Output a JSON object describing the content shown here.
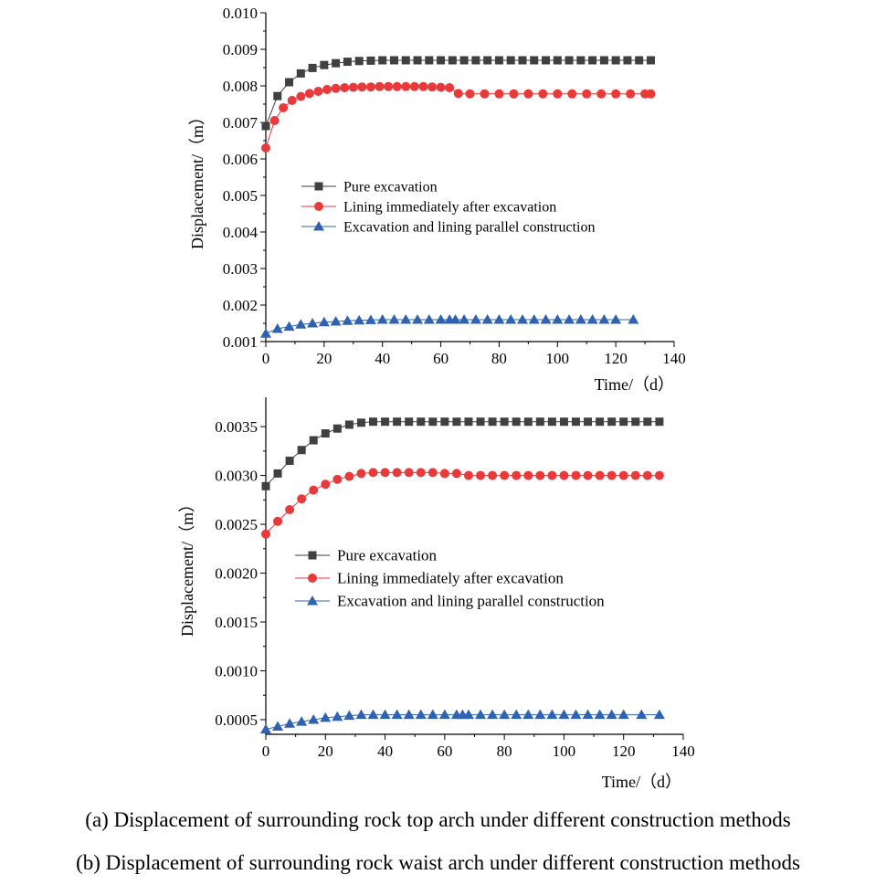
{
  "chart_data": [
    {
      "type": "line",
      "id": "a",
      "xlabel": "Time/（d）",
      "ylabel": "Displacement/（m）",
      "xlim": [
        0,
        140
      ],
      "ylim": [
        0.001,
        0.01
      ],
      "xticks": [
        "0",
        "20",
        "40",
        "60",
        "80",
        "100",
        "120",
        "140"
      ],
      "yticks": [
        "0.001",
        "0.002",
        "0.003",
        "0.004",
        "0.005",
        "0.006",
        "0.007",
        "0.008",
        "0.009",
        "0.010"
      ],
      "legend_position": "center",
      "series": [
        {
          "name": "Pure excavation",
          "color": "#404040",
          "marker": "square",
          "x": [
            0,
            4,
            8,
            12,
            16,
            20,
            24,
            28,
            32,
            36,
            40,
            44,
            48,
            52,
            56,
            60,
            64,
            68,
            72,
            76,
            80,
            84,
            88,
            92,
            96,
            100,
            104,
            108,
            112,
            116,
            120,
            124,
            128,
            132
          ],
          "y": [
            0.0069,
            0.00772,
            0.0081,
            0.00834,
            0.00849,
            0.00857,
            0.00862,
            0.00866,
            0.00868,
            0.00869,
            0.0087,
            0.0087,
            0.0087,
            0.0087,
            0.0087,
            0.0087,
            0.0087,
            0.0087,
            0.0087,
            0.0087,
            0.0087,
            0.0087,
            0.0087,
            0.0087,
            0.0087,
            0.0087,
            0.0087,
            0.0087,
            0.0087,
            0.0087,
            0.0087,
            0.0087,
            0.0087,
            0.0087
          ]
        },
        {
          "name": "Lining immediately after excavation",
          "color": "#e83a3a",
          "marker": "circle",
          "x": [
            0,
            3,
            6,
            9,
            12,
            15,
            18,
            21,
            24,
            27,
            30,
            33,
            36,
            39,
            42,
            45,
            48,
            51,
            54,
            57,
            60,
            63,
            66,
            70,
            75,
            80,
            85,
            90,
            95,
            100,
            105,
            110,
            115,
            120,
            125,
            130,
            132
          ],
          "y": [
            0.0063,
            0.00705,
            0.0074,
            0.0076,
            0.00771,
            0.00779,
            0.00785,
            0.0079,
            0.00793,
            0.00795,
            0.00796,
            0.00797,
            0.00797,
            0.00798,
            0.00798,
            0.00798,
            0.00798,
            0.00798,
            0.00798,
            0.00797,
            0.00796,
            0.00795,
            0.00779,
            0.00778,
            0.00778,
            0.00778,
            0.00778,
            0.00778,
            0.00778,
            0.00778,
            0.00778,
            0.00778,
            0.00778,
            0.00778,
            0.00778,
            0.00778,
            0.00778
          ]
        },
        {
          "name": "Excavation and lining parallel construction",
          "color": "#2f63b1",
          "marker": "triangle",
          "x": [
            0,
            4,
            8,
            12,
            16,
            20,
            24,
            28,
            32,
            36,
            40,
            44,
            48,
            52,
            56,
            60,
            63,
            65,
            68,
            72,
            76,
            80,
            84,
            88,
            92,
            96,
            100,
            104,
            108,
            112,
            116,
            120,
            126
          ],
          "y": [
            0.00122,
            0.00135,
            0.00141,
            0.00147,
            0.0015,
            0.00153,
            0.00155,
            0.00157,
            0.00158,
            0.00159,
            0.0016,
            0.0016,
            0.0016,
            0.0016,
            0.0016,
            0.0016,
            0.0016,
            0.0016,
            0.0016,
            0.0016,
            0.0016,
            0.0016,
            0.0016,
            0.0016,
            0.0016,
            0.0016,
            0.0016,
            0.0016,
            0.0016,
            0.0016,
            0.0016,
            0.0016,
            0.0016
          ]
        }
      ]
    },
    {
      "type": "line",
      "id": "b",
      "xlabel": "Time/（d）",
      "ylabel": "Displacement/（m）",
      "xlim": [
        0,
        140
      ],
      "ylim": [
        0.00035,
        0.0038
      ],
      "xticks": [
        "0",
        "20",
        "40",
        "60",
        "80",
        "100",
        "120",
        "140"
      ],
      "yticks": [
        "0.0005",
        "0.0010",
        "0.0015",
        "0.0020",
        "0.0025",
        "0.0030",
        "0.0035"
      ],
      "legend_position": "center",
      "series": [
        {
          "name": "Pure excavation",
          "color": "#404040",
          "marker": "square",
          "x": [
            0,
            4,
            8,
            12,
            16,
            20,
            24,
            28,
            32,
            36,
            40,
            44,
            48,
            52,
            56,
            60,
            64,
            68,
            72,
            76,
            80,
            84,
            88,
            92,
            96,
            100,
            104,
            108,
            112,
            116,
            120,
            124,
            128,
            132
          ],
          "y": [
            0.00289,
            0.00302,
            0.00315,
            0.00326,
            0.00336,
            0.00343,
            0.00348,
            0.00352,
            0.00354,
            0.00355,
            0.00355,
            0.00355,
            0.00355,
            0.00355,
            0.00355,
            0.00355,
            0.00355,
            0.00355,
            0.00355,
            0.00355,
            0.00355,
            0.00355,
            0.00355,
            0.00355,
            0.00355,
            0.00355,
            0.00355,
            0.00355,
            0.00355,
            0.00355,
            0.00355,
            0.00355,
            0.00355,
            0.00355
          ]
        },
        {
          "name": "Lining immediately after excavation",
          "color": "#e83a3a",
          "marker": "circle",
          "x": [
            0,
            4,
            8,
            12,
            16,
            20,
            24,
            28,
            32,
            36,
            40,
            44,
            48,
            52,
            56,
            60,
            64,
            68,
            72,
            76,
            80,
            84,
            88,
            92,
            96,
            100,
            104,
            108,
            112,
            116,
            120,
            124,
            128,
            132
          ],
          "y": [
            0.0024,
            0.00253,
            0.00265,
            0.00276,
            0.00285,
            0.00291,
            0.00296,
            0.00299,
            0.00302,
            0.00303,
            0.00303,
            0.00303,
            0.00303,
            0.00303,
            0.00303,
            0.00302,
            0.00302,
            0.003,
            0.003,
            0.003,
            0.003,
            0.003,
            0.003,
            0.003,
            0.003,
            0.003,
            0.003,
            0.003,
            0.003,
            0.003,
            0.003,
            0.003,
            0.003,
            0.003
          ]
        },
        {
          "name": "Excavation and lining parallel construction",
          "color": "#2f63b1",
          "marker": "triangle",
          "x": [
            0,
            4,
            8,
            12,
            16,
            20,
            24,
            28,
            32,
            36,
            40,
            44,
            48,
            52,
            56,
            60,
            64,
            66,
            68,
            72,
            76,
            80,
            84,
            88,
            92,
            96,
            100,
            104,
            108,
            112,
            116,
            120,
            126,
            132
          ],
          "y": [
            0.0004,
            0.00043,
            0.00046,
            0.00048,
            0.0005,
            0.00052,
            0.00053,
            0.00054,
            0.00055,
            0.00055,
            0.00055,
            0.00055,
            0.00055,
            0.00055,
            0.00055,
            0.00055,
            0.00055,
            0.00055,
            0.00055,
            0.00055,
            0.00055,
            0.00055,
            0.00055,
            0.00055,
            0.00055,
            0.00055,
            0.00055,
            0.00055,
            0.00055,
            0.00055,
            0.00055,
            0.00055,
            0.00055,
            0.00055
          ]
        }
      ]
    }
  ],
  "captions": {
    "a": "(a) Displacement of surrounding rock top arch under different construction methods",
    "b": "(b) Displacement of surrounding rock waist arch under different construction methods"
  }
}
